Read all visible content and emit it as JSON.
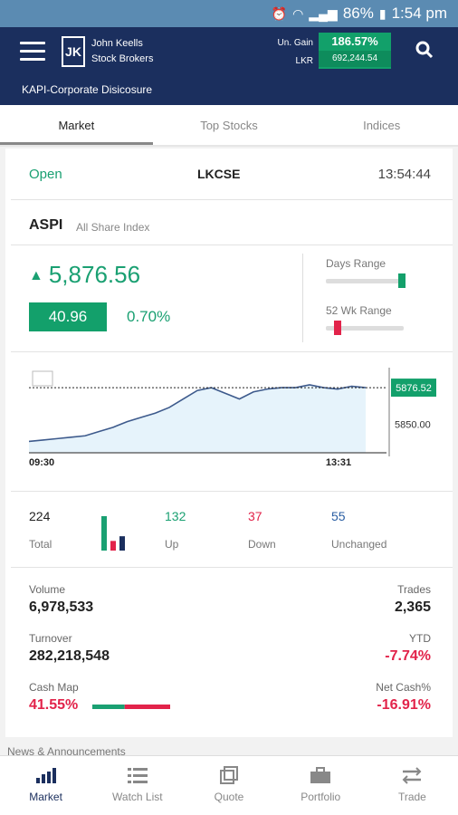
{
  "status": {
    "percent": "86%",
    "time": "1:54 pm"
  },
  "header": {
    "brand_line1": "John Keells",
    "brand_line2": "Stock Brokers",
    "gain_label": "Un. Gain",
    "lkr_label": "LKR",
    "gain_pct": "186.57%",
    "gain_value": "692,244.54",
    "subtitle": "KAPI-Corporate Disicosure"
  },
  "tabs": [
    "Market",
    "Top Stocks",
    "Indices"
  ],
  "market": {
    "status": "Open",
    "exchange": "LKCSE",
    "time": "13:54:44"
  },
  "index": {
    "name": "ASPI",
    "full_name": "All Share Index",
    "value": "5,876.56",
    "change": "40.96",
    "change_pct": "0.70%",
    "days_range_label": "Days Range",
    "wk52_label": "52 Wk Range",
    "days_range": 0.98,
    "wk52_range": 0.15
  },
  "chart_data": {
    "type": "line",
    "x_start": "09:30",
    "x_end": "13:31",
    "current_label": "5876.52",
    "ref_label": "5850.00",
    "series": [
      {
        "values": [
          5838,
          5839,
          5840,
          5841,
          5842,
          5845,
          5848,
          5852,
          5855,
          5858,
          5862,
          5868,
          5874,
          5876,
          5872,
          5868,
          5873,
          5875,
          5876,
          5876,
          5878,
          5876,
          5875,
          5877,
          5876
        ]
      }
    ],
    "ylim": [
      5830,
      5885
    ]
  },
  "breadth": {
    "total": "224",
    "total_label": "Total",
    "up": "132",
    "up_label": "Up",
    "down": "37",
    "down_label": "Down",
    "unchanged": "55",
    "unchanged_label": "Unchanged"
  },
  "stats": {
    "volume_label": "Volume",
    "volume": "6,978,533",
    "trades_label": "Trades",
    "trades": "2,365",
    "turnover_label": "Turnover",
    "turnover": "282,218,548",
    "ytd_label": "YTD",
    "ytd": "-7.74%",
    "cashmap_label": "Cash Map",
    "cashmap": "41.55%",
    "cashmap_fraction": 0.4155,
    "netcash_label": "Net Cash%",
    "netcash": "-16.91%"
  },
  "news_label": "News & Announcements",
  "nav": [
    "Market",
    "Watch List",
    "Quote",
    "Portfolio",
    "Trade"
  ]
}
